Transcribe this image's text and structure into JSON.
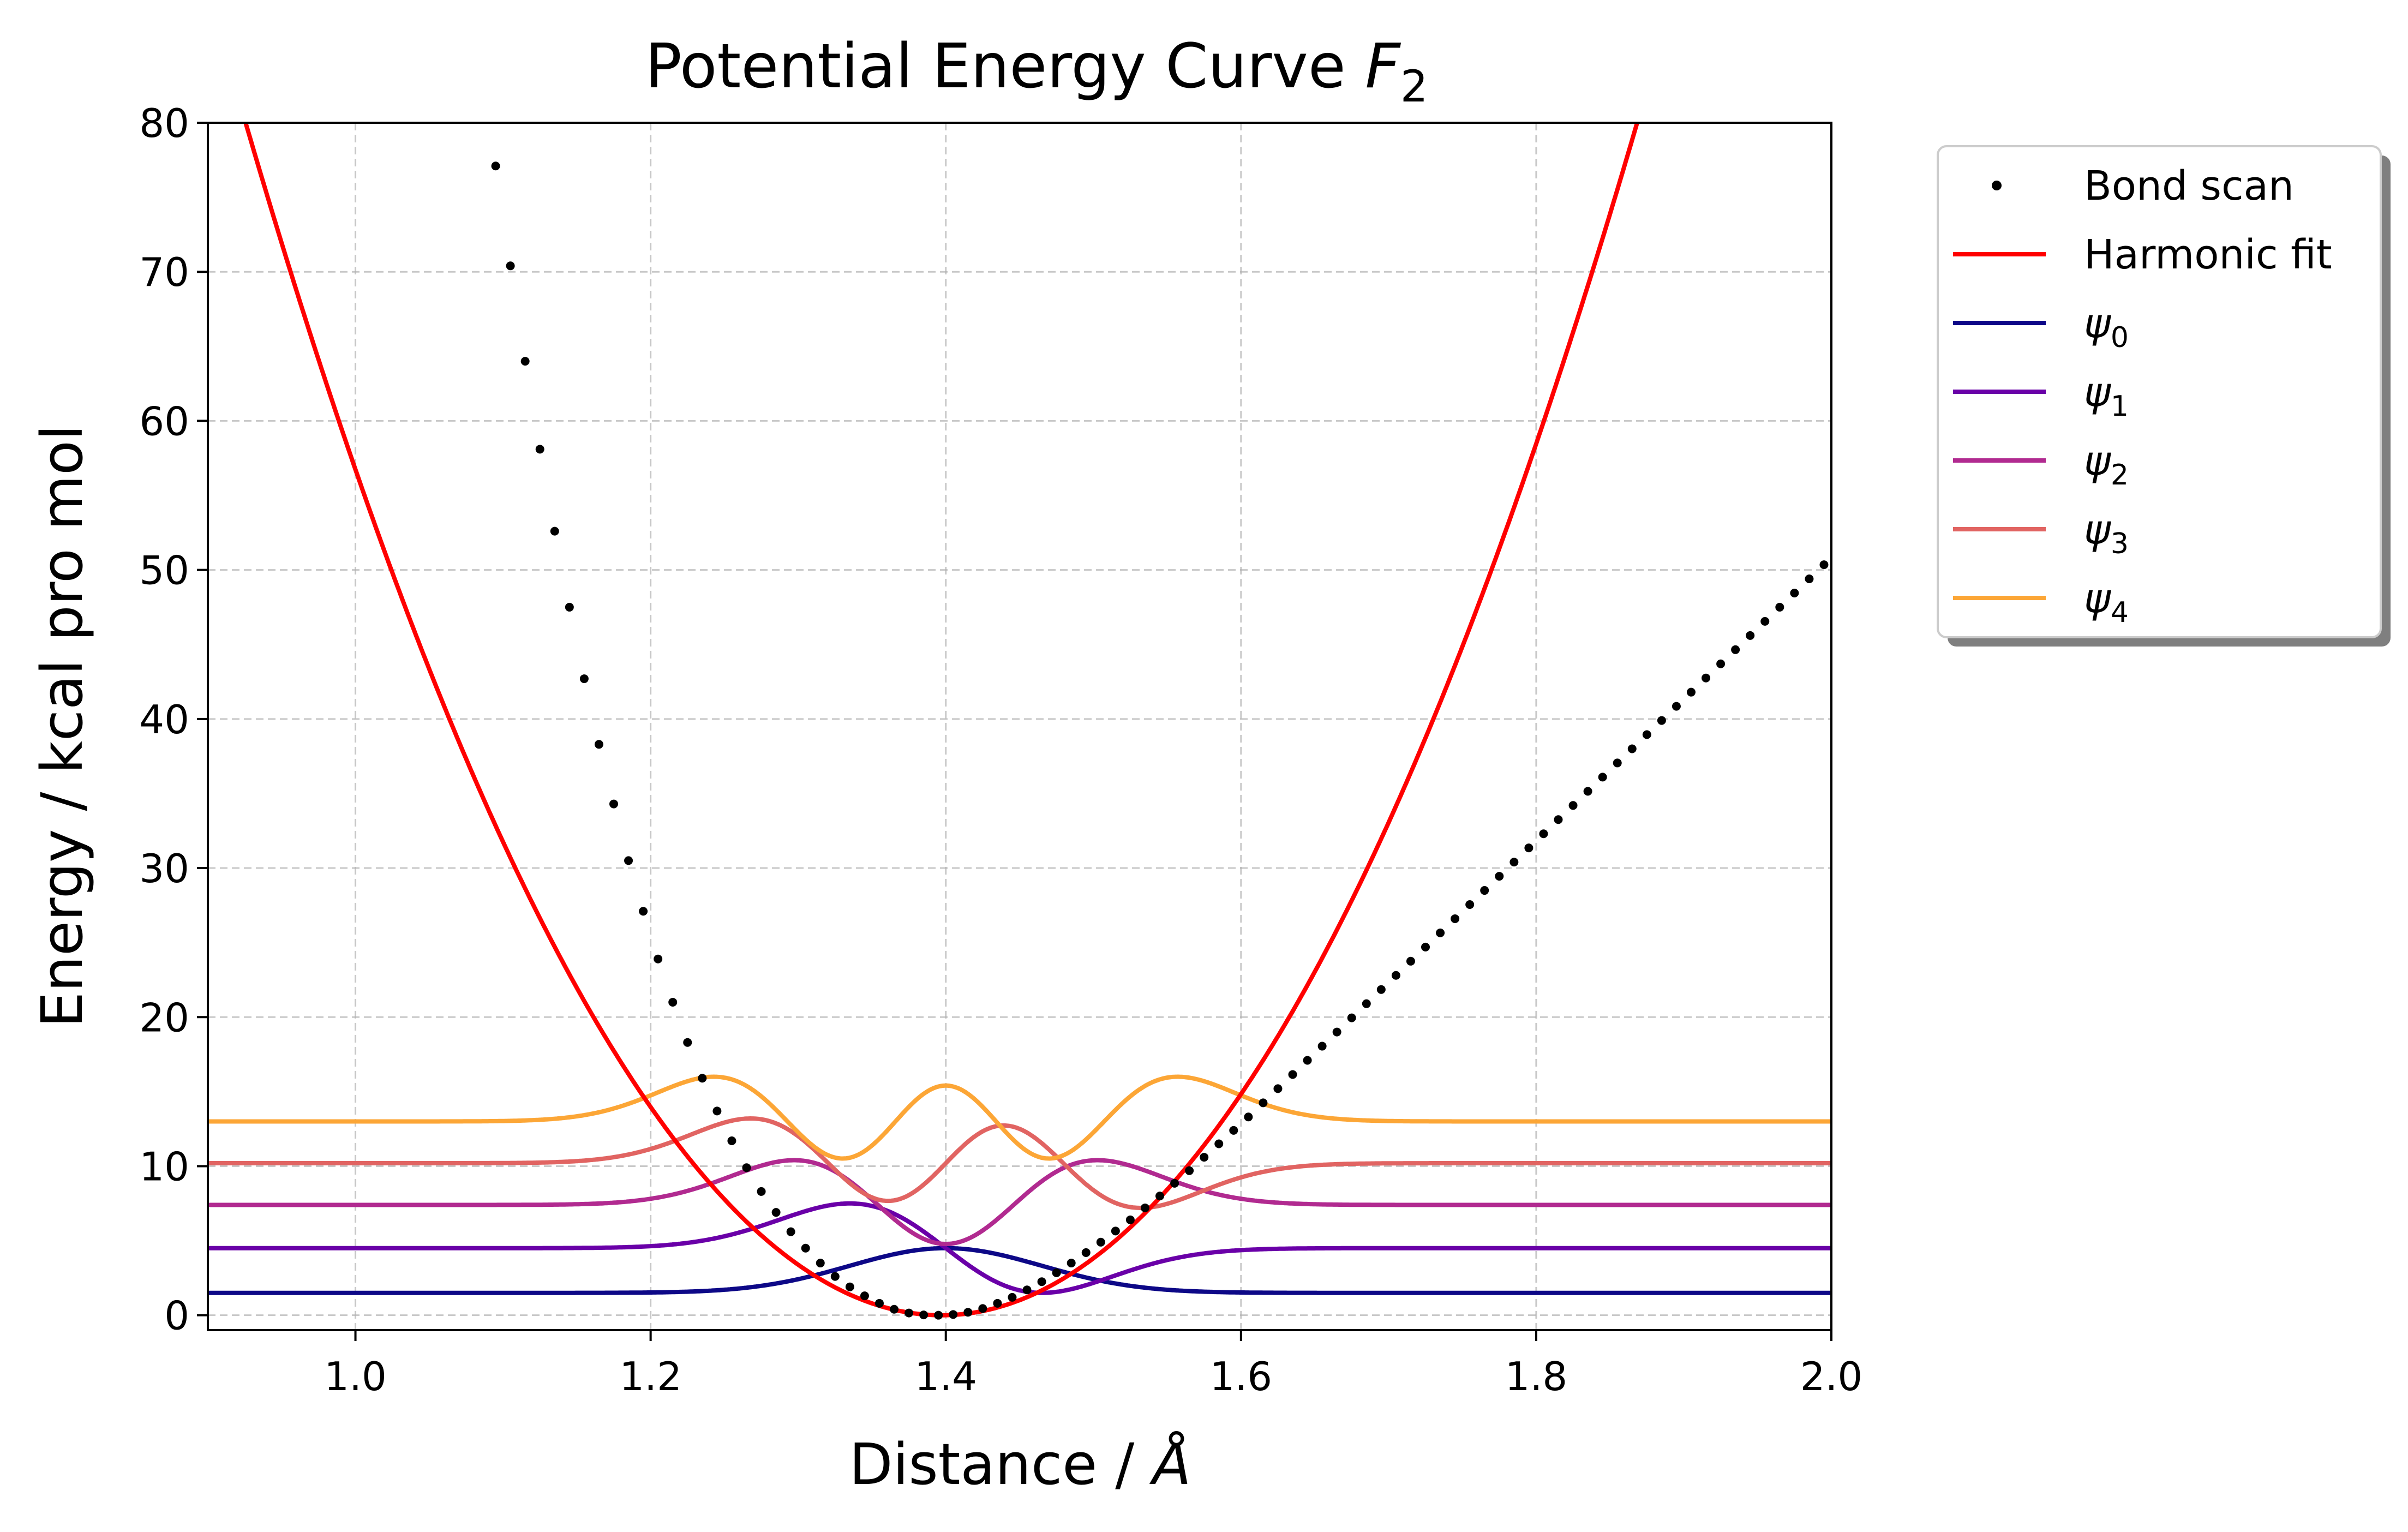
{
  "chart_data": {
    "type": "line",
    "title": "Potential Energy Curve",
    "title_math": "F",
    "title_math_sub": "2",
    "xlabel": "Distance /",
    "xlabel_math": "Å",
    "ylabel": "Energy / kcal pro mol",
    "xlim": [
      0.9,
      2.0
    ],
    "ylim": [
      -1,
      80
    ],
    "x_ticks": [
      1.0,
      1.2,
      1.4,
      1.6,
      1.8,
      2.0
    ],
    "x_tick_labels": [
      "1.0",
      "1.2",
      "1.4",
      "1.6",
      "1.8",
      "2.0"
    ],
    "y_ticks": [
      0,
      10,
      20,
      30,
      40,
      50,
      60,
      70,
      80
    ],
    "y_tick_labels": [
      "0",
      "10",
      "20",
      "30",
      "40",
      "50",
      "60",
      "70",
      "80"
    ],
    "grid": true,
    "legend_position": "outside-top-right",
    "scatter": {
      "name": "Bond scan",
      "color": "#000000",
      "x": [
        1.095,
        1.105,
        1.115,
        1.125,
        1.135,
        1.145,
        1.155,
        1.165,
        1.175,
        1.185,
        1.195,
        1.205,
        1.215,
        1.225,
        1.235,
        1.245,
        1.255,
        1.265,
        1.275,
        1.285,
        1.295,
        1.305,
        1.315,
        1.325,
        1.335,
        1.345,
        1.355,
        1.365,
        1.375,
        1.385,
        1.395,
        1.405,
        1.415,
        1.425,
        1.435,
        1.445,
        1.455,
        1.465,
        1.475,
        1.485,
        1.495,
        1.505,
        1.515,
        1.525,
        1.535,
        1.545,
        1.555,
        1.565,
        1.575,
        1.585,
        1.595,
        1.605,
        1.615,
        1.625,
        1.635,
        1.645,
        1.655,
        1.665,
        1.675,
        1.685,
        1.695,
        1.705,
        1.715,
        1.725,
        1.735,
        1.745,
        1.755,
        1.765,
        1.775,
        1.785,
        1.795,
        1.805,
        1.815,
        1.825,
        1.835,
        1.845,
        1.855,
        1.865,
        1.875,
        1.885,
        1.895,
        1.905,
        1.915,
        1.925,
        1.935,
        1.945,
        1.955,
        1.965,
        1.975,
        1.985,
        1.995
      ],
      "y": [
        77.1,
        70.4,
        64.0,
        58.1,
        52.6,
        47.5,
        42.7,
        38.3,
        34.3,
        30.5,
        27.1,
        23.9,
        21.0,
        18.3,
        15.9,
        13.7,
        11.7,
        9.9,
        8.3,
        6.9,
        5.6,
        4.5,
        3.5,
        2.6,
        1.9,
        1.3,
        0.8,
        0.4,
        0.15,
        0.02,
        0.0,
        0.05,
        0.2,
        0.45,
        0.8,
        1.2,
        1.7,
        2.25,
        2.85,
        3.5,
        4.2,
        4.9,
        5.65,
        6.4,
        7.2,
        8.0,
        8.85,
        9.7,
        10.6,
        11.5,
        12.4,
        13.3,
        14.25,
        15.2,
        16.15,
        17.1,
        18.05,
        19.0,
        19.95,
        20.9,
        21.85,
        22.8,
        23.75,
        24.7,
        25.65,
        26.6,
        27.55,
        28.5,
        29.45,
        30.4,
        31.35,
        32.3,
        33.25,
        34.2,
        35.15,
        36.1,
        37.05,
        38.0,
        38.95,
        39.9,
        40.85,
        41.8,
        42.75,
        43.7,
        44.65,
        45.6,
        46.55,
        47.5,
        48.45,
        49.4,
        50.35
      ]
    },
    "harmonic_fit": {
      "name": "Harmonic fit",
      "color": "#ff0000",
      "r0": 1.397,
      "k": 360,
      "x_range": [
        0.9,
        2.0
      ]
    },
    "wavefunctions": [
      {
        "name": "ψ",
        "sub": "0",
        "color": "#0d0887",
        "baseline": 1.5,
        "n": 0,
        "amp": 3.0
      },
      {
        "name": "ψ",
        "sub": "1",
        "color": "#6a00a8",
        "baseline": 4.5,
        "n": 1,
        "amp": 3.0
      },
      {
        "name": "ψ",
        "sub": "2",
        "color": "#b12a90",
        "baseline": 7.4,
        "n": 2,
        "amp": 3.0
      },
      {
        "name": "ψ",
        "sub": "3",
        "color": "#e16462",
        "baseline": 10.2,
        "n": 3,
        "amp": 3.0
      },
      {
        "name": "ψ",
        "sub": "4",
        "color": "#fca636",
        "baseline": 13.0,
        "n": 4,
        "amp": 3.0
      }
    ],
    "wavefunction_center": 1.4,
    "wavefunction_width": 0.065,
    "legend": [
      {
        "label": "Bond scan",
        "sub": "",
        "kind": "scatter",
        "color": "#000000"
      },
      {
        "label": "Harmonic fit",
        "sub": "",
        "kind": "line",
        "color": "#ff0000"
      },
      {
        "label": "ψ",
        "sub": "0",
        "kind": "line",
        "color": "#0d0887"
      },
      {
        "label": "ψ",
        "sub": "1",
        "kind": "line",
        "color": "#6a00a8"
      },
      {
        "label": "ψ",
        "sub": "2",
        "kind": "line",
        "color": "#b12a90"
      },
      {
        "label": "ψ",
        "sub": "3",
        "kind": "line",
        "color": "#e16462"
      },
      {
        "label": "ψ",
        "sub": "4",
        "kind": "line",
        "color": "#fca636"
      }
    ]
  }
}
